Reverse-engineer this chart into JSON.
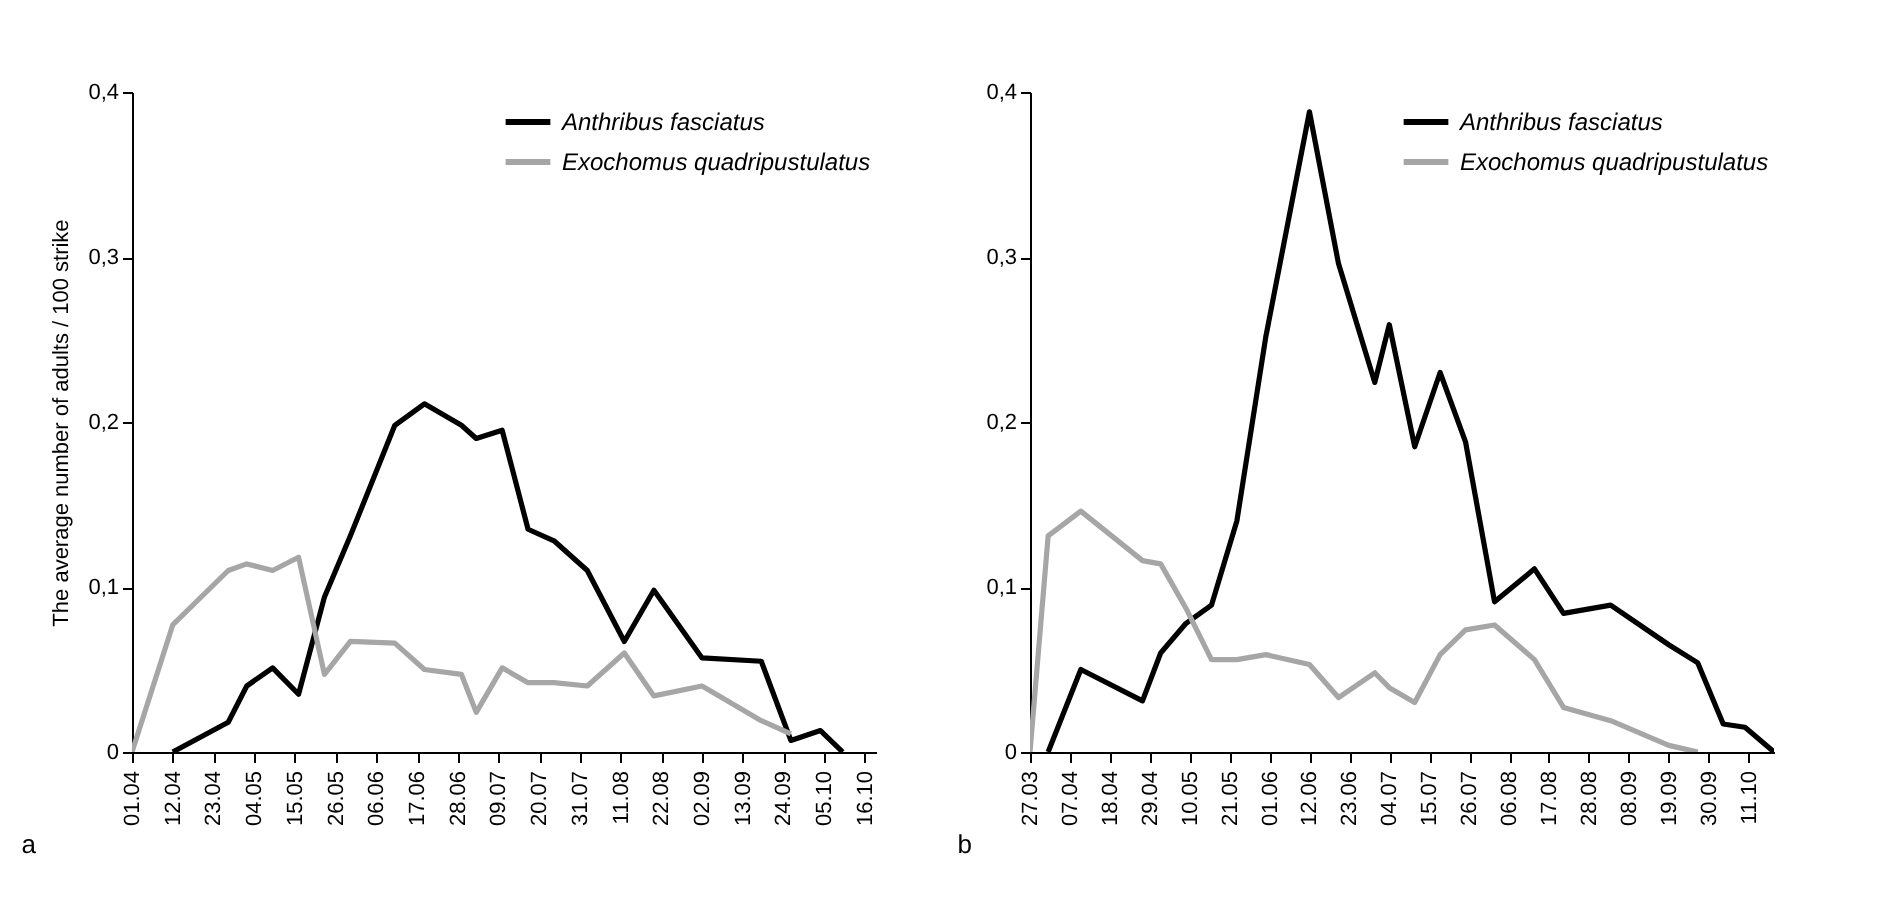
{
  "chart_data": [
    {
      "type": "line",
      "ylabel": "The average number of adults / 100 strike",
      "annotations": [
        "a"
      ],
      "legend": "top right",
      "grid": false,
      "xlim": [
        "--04-01",
        "--10-19"
      ],
      "xticks": [
        {
          "value": "--04-01",
          "label": "01.04"
        },
        {
          "value": "--04-12",
          "label": "12.04"
        },
        {
          "value": "--04-23",
          "label": "23.04"
        },
        {
          "value": "--05-04",
          "label": "04.05"
        },
        {
          "value": "--05-15",
          "label": "15.05"
        },
        {
          "value": "--05-26",
          "label": "26.05"
        },
        {
          "value": "--06-06",
          "label": "06.06"
        },
        {
          "value": "--06-17",
          "label": "17.06"
        },
        {
          "value": "--06-28",
          "label": "28.06"
        },
        {
          "value": "--07-09",
          "label": "09.07"
        },
        {
          "value": "--07-20",
          "label": "20.07"
        },
        {
          "value": "--07-31",
          "label": "31.07"
        },
        {
          "value": "--08-11",
          "label": "11.08"
        },
        {
          "value": "--08-22",
          "label": "22.08"
        },
        {
          "value": "--09-02",
          "label": "02.09"
        },
        {
          "value": "--09-13",
          "label": "13.09"
        },
        {
          "value": "--09-24",
          "label": "24.09"
        },
        {
          "value": "--10-05",
          "label": "05.10"
        },
        {
          "value": "--10-16",
          "label": "16.10"
        }
      ],
      "ylim": [
        0,
        0.4
      ],
      "yticks": [
        0,
        {
          "value": 0.1,
          "label": "0,1"
        },
        {
          "value": 0.2,
          "label": "0,2"
        },
        {
          "value": 0.3,
          "label": "0,3"
        },
        {
          "value": 0.4,
          "label": "0,4"
        }
      ],
      "series": [
        {
          "name": "Anthribus fasciatus",
          "color": "#000000",
          "x": [
            "--04-12",
            "--04-27",
            "--05-02",
            "--05-09",
            "--05-16",
            "--05-23",
            "--05-30",
            "--06-11",
            "--06-19",
            "--06-29",
            "--07-03",
            "--07-10",
            "--07-17",
            "--07-24",
            "--08-02",
            "--08-12",
            "--08-20",
            "--09-02",
            "--09-18",
            "--09-26",
            "--10-04",
            "--10-10"
          ],
          "values": [
            0,
            0.018,
            0.04,
            0.051,
            0.035,
            0.094,
            0.131,
            0.198,
            0.211,
            0.198,
            0.19,
            0.195,
            0.135,
            0.128,
            0.11,
            0.067,
            0.098,
            0.057,
            0.055,
            0.007,
            0.013,
            0
          ]
        },
        {
          "name": "Exochomus quadripustulatus",
          "color": "#a6a6a6",
          "x": [
            "--04-01",
            "--04-12",
            "--04-27",
            "--05-02",
            "--05-09",
            "--05-16",
            "--05-23",
            "--05-30",
            "--06-11",
            "--06-19",
            "--06-29",
            "--07-03",
            "--07-10",
            "--07-17",
            "--07-24",
            "--08-02",
            "--08-12",
            "--08-20",
            "--09-02",
            "--09-18",
            "--09-26"
          ],
          "values": [
            0,
            0.077,
            0.11,
            0.114,
            0.11,
            0.118,
            0.047,
            0.067,
            0.066,
            0.05,
            0.047,
            0.024,
            0.051,
            0.042,
            0.042,
            0.04,
            0.06,
            0.034,
            0.04,
            0.019,
            0.011
          ]
        }
      ]
    },
    {
      "type": "line",
      "annotations": [
        "b"
      ],
      "legend": "top right",
      "grid": false,
      "xlim": [
        "--03-27",
        "--10-18"
      ],
      "xticks": [
        {
          "value": "--03-27",
          "label": "27.03"
        },
        {
          "value": "--04-07",
          "label": "07.04"
        },
        {
          "value": "--04-18",
          "label": "18.04"
        },
        {
          "value": "--04-29",
          "label": "29.04"
        },
        {
          "value": "--05-10",
          "label": "10.05"
        },
        {
          "value": "--05-21",
          "label": "21.05"
        },
        {
          "value": "--06-01",
          "label": "01.06"
        },
        {
          "value": "--06-12",
          "label": "12.06"
        },
        {
          "value": "--06-23",
          "label": "23.06"
        },
        {
          "value": "--07-04",
          "label": "04.07"
        },
        {
          "value": "--07-15",
          "label": "15.07"
        },
        {
          "value": "--07-26",
          "label": "26.07"
        },
        {
          "value": "--08-06",
          "label": "06.08"
        },
        {
          "value": "--08-17",
          "label": "17.08"
        },
        {
          "value": "--08-28",
          "label": "28.08"
        },
        {
          "value": "--09-08",
          "label": "08.09"
        },
        {
          "value": "--09-19",
          "label": "19.09"
        },
        {
          "value": "--09-30",
          "label": "30.09"
        },
        {
          "value": "--10-11",
          "label": "11.10"
        }
      ],
      "ylim": [
        0,
        0.4
      ],
      "yticks": [
        0,
        {
          "value": 0.1,
          "label": "0,1"
        },
        {
          "value": 0.2,
          "label": "0,2"
        },
        {
          "value": 0.3,
          "label": "0,3"
        },
        {
          "value": 0.4,
          "label": "0,4"
        }
      ],
      "series": [
        {
          "name": "Anthribus fasciatus",
          "color": "#000000",
          "x": [
            "--04-01",
            "--04-10",
            "--04-27",
            "--05-02",
            "--05-09",
            "--05-16",
            "--05-23",
            "--05-31",
            "--06-12",
            "--06-20",
            "--06-30",
            "--07-04",
            "--07-11",
            "--07-18",
            "--07-25",
            "--08-02",
            "--08-13",
            "--08-21",
            "--09-03",
            "--09-19",
            "--09-27",
            "--10-04",
            "--10-10",
            "--10-18"
          ],
          "values": [
            0,
            0.05,
            0.031,
            0.06,
            0.078,
            0.089,
            0.14,
            0.252,
            0.388,
            0.296,
            0.224,
            0.259,
            0.185,
            0.23,
            0.188,
            0.091,
            0.111,
            0.084,
            0.089,
            0.065,
            0.054,
            0.017,
            0.015,
            0
          ]
        },
        {
          "name": "Exochomus quadripustulatus",
          "color": "#a6a6a6",
          "x": [
            "--03-27",
            "--04-01",
            "--04-10",
            "--04-27",
            "--05-02",
            "--05-09",
            "--05-16",
            "--05-23",
            "--05-31",
            "--06-12",
            "--06-20",
            "--06-30",
            "--07-04",
            "--07-11",
            "--07-18",
            "--07-25",
            "--08-02",
            "--08-13",
            "--08-21",
            "--09-03",
            "--09-19",
            "--09-27"
          ],
          "values": [
            0,
            0.131,
            0.146,
            0.116,
            0.114,
            0.087,
            0.056,
            0.056,
            0.059,
            0.053,
            0.033,
            0.048,
            0.039,
            0.03,
            0.059,
            0.074,
            0.077,
            0.056,
            0.027,
            0.019,
            0.004,
            0
          ]
        }
      ]
    }
  ]
}
